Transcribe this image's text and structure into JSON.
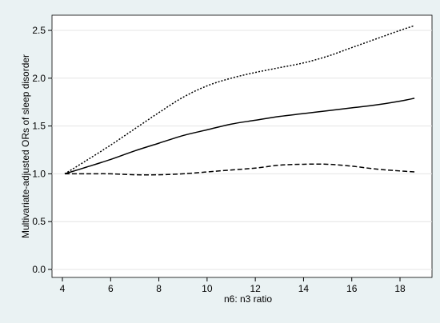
{
  "chart_data": {
    "type": "line",
    "title": "",
    "xlabel": "n6: n3 ratio",
    "ylabel": "Multivariate-adjusted ORs of sleep disorder",
    "xlim": [
      4,
      18.7
    ],
    "ylim": [
      0,
      2.6
    ],
    "xticks": [
      4,
      6,
      8,
      10,
      12,
      14,
      16,
      18
    ],
    "yticks": [
      0.0,
      0.5,
      1.0,
      1.5,
      2.0,
      2.5
    ],
    "ytick_labels": [
      "0.0",
      "0.5",
      "1.0",
      "1.5",
      "2.0",
      "2.5"
    ],
    "grid": "horizontal",
    "legend": "none",
    "series": [
      {
        "style": "solid",
        "x": [
          4.1,
          5,
          6,
          7,
          8,
          9,
          10,
          11,
          12,
          13,
          14,
          15,
          16,
          17,
          18,
          18.6
        ],
        "y": [
          1.0,
          1.07,
          1.15,
          1.24,
          1.32,
          1.4,
          1.46,
          1.52,
          1.56,
          1.6,
          1.63,
          1.66,
          1.69,
          1.72,
          1.76,
          1.79
        ]
      },
      {
        "style": "dotted",
        "x": [
          4.1,
          5,
          6,
          7,
          8,
          9,
          10,
          11,
          12,
          13,
          14,
          15,
          16,
          17,
          18,
          18.6
        ],
        "y": [
          1.0,
          1.14,
          1.3,
          1.47,
          1.64,
          1.8,
          1.92,
          2.0,
          2.06,
          2.11,
          2.16,
          2.23,
          2.32,
          2.41,
          2.5,
          2.55
        ]
      },
      {
        "style": "dashed",
        "x": [
          4.1,
          5,
          6,
          7,
          8,
          9,
          10,
          11,
          12,
          13,
          14,
          15,
          16,
          17,
          18,
          18.6
        ],
        "y": [
          1.0,
          1.0,
          1.0,
          0.99,
          0.99,
          1.0,
          1.02,
          1.04,
          1.06,
          1.09,
          1.1,
          1.1,
          1.08,
          1.05,
          1.03,
          1.02
        ]
      }
    ]
  }
}
